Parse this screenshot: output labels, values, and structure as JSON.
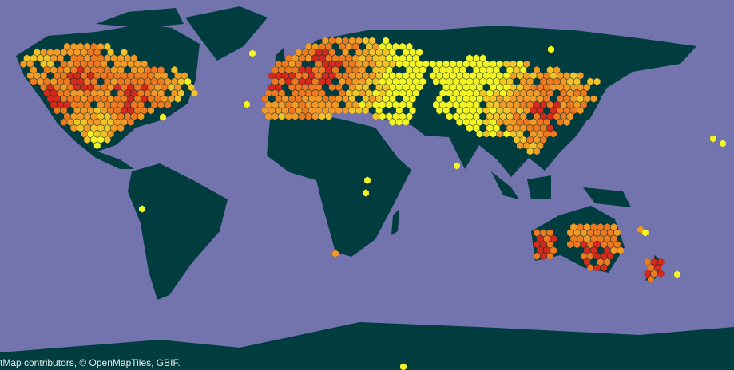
{
  "map": {
    "type": "hexbin occurrence density map",
    "colors": {
      "ocean": "#7373ae",
      "land": "#013d3f",
      "scale": [
        "#f5f523",
        "#f2c428",
        "#f29a25",
        "#ee7a1f",
        "#d42a1c"
      ]
    },
    "attribution": "tMap contributors, © OpenMapTiles, GBIF."
  }
}
